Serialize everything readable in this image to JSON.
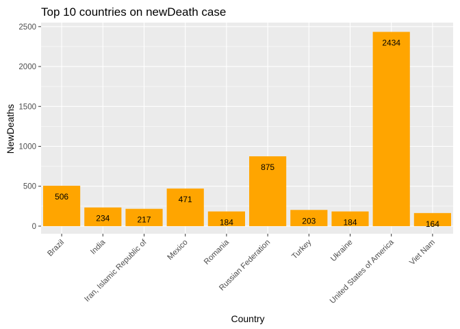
{
  "chart_data": {
    "type": "bar",
    "title": "Top 10 countries on newDeath case",
    "xlabel": "Country",
    "ylabel": "NewDeaths",
    "categories": [
      "Brazil",
      "India",
      "Iran, Islamic Republic of",
      "Mexico",
      "Romania",
      "Russian Federation",
      "Turkey",
      "Ukraine",
      "United States of America",
      "Viet Nam"
    ],
    "values": [
      506,
      234,
      217,
      471,
      184,
      875,
      203,
      184,
      2434,
      164
    ],
    "ylim": [
      -95,
      2550
    ],
    "yticks": [
      0,
      500,
      1000,
      1500,
      2000,
      2500
    ],
    "grid": true,
    "colors": {
      "bar": "#FFA500",
      "panel": "#EBEBEB",
      "grid": "#FFFFFF",
      "tick_text": "#4D4D4D"
    }
  }
}
